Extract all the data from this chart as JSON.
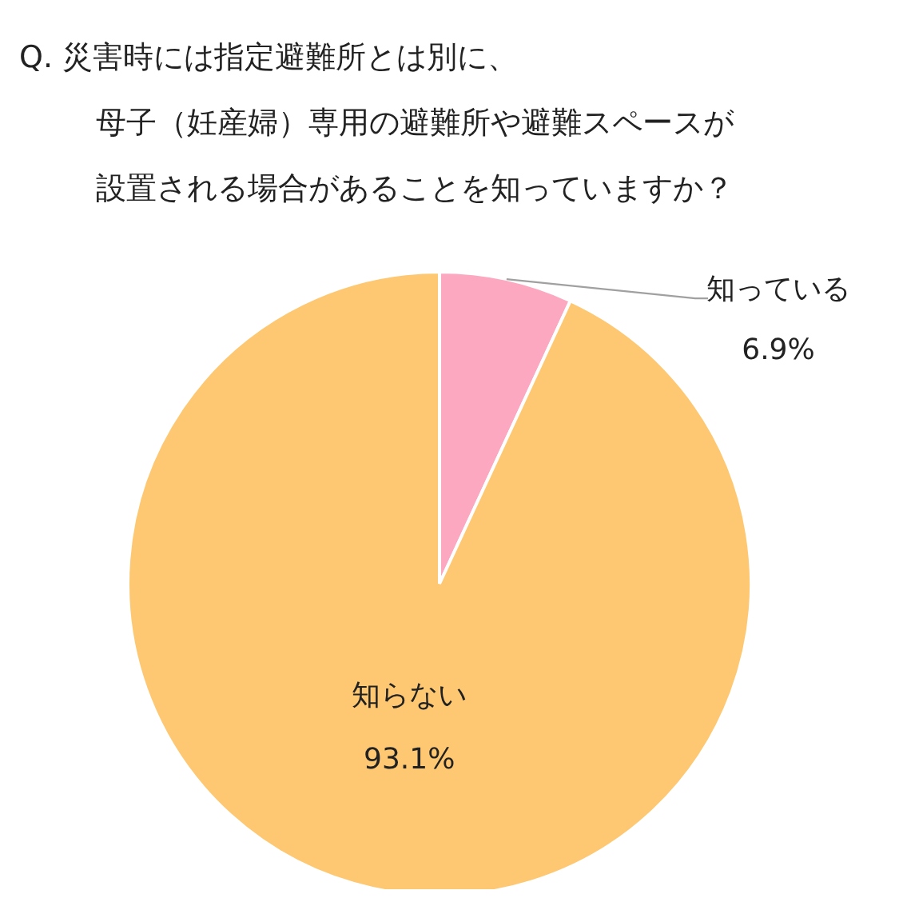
{
  "chart_data": {
    "type": "pie",
    "title": "Q.  災害時には指定避難所とは別に、",
    "subtitle": "母子（妊産婦）専用の避難所や避難スペースが設置される場合があることを知っていますか？",
    "categories": [
      "知っている",
      "知らない"
    ],
    "values": [
      6.9,
      93.1
    ],
    "value_labels": [
      "6.9%",
      "93.1%"
    ],
    "colors": [
      "#fca8c0",
      "#fec872"
    ],
    "legend": false
  }
}
